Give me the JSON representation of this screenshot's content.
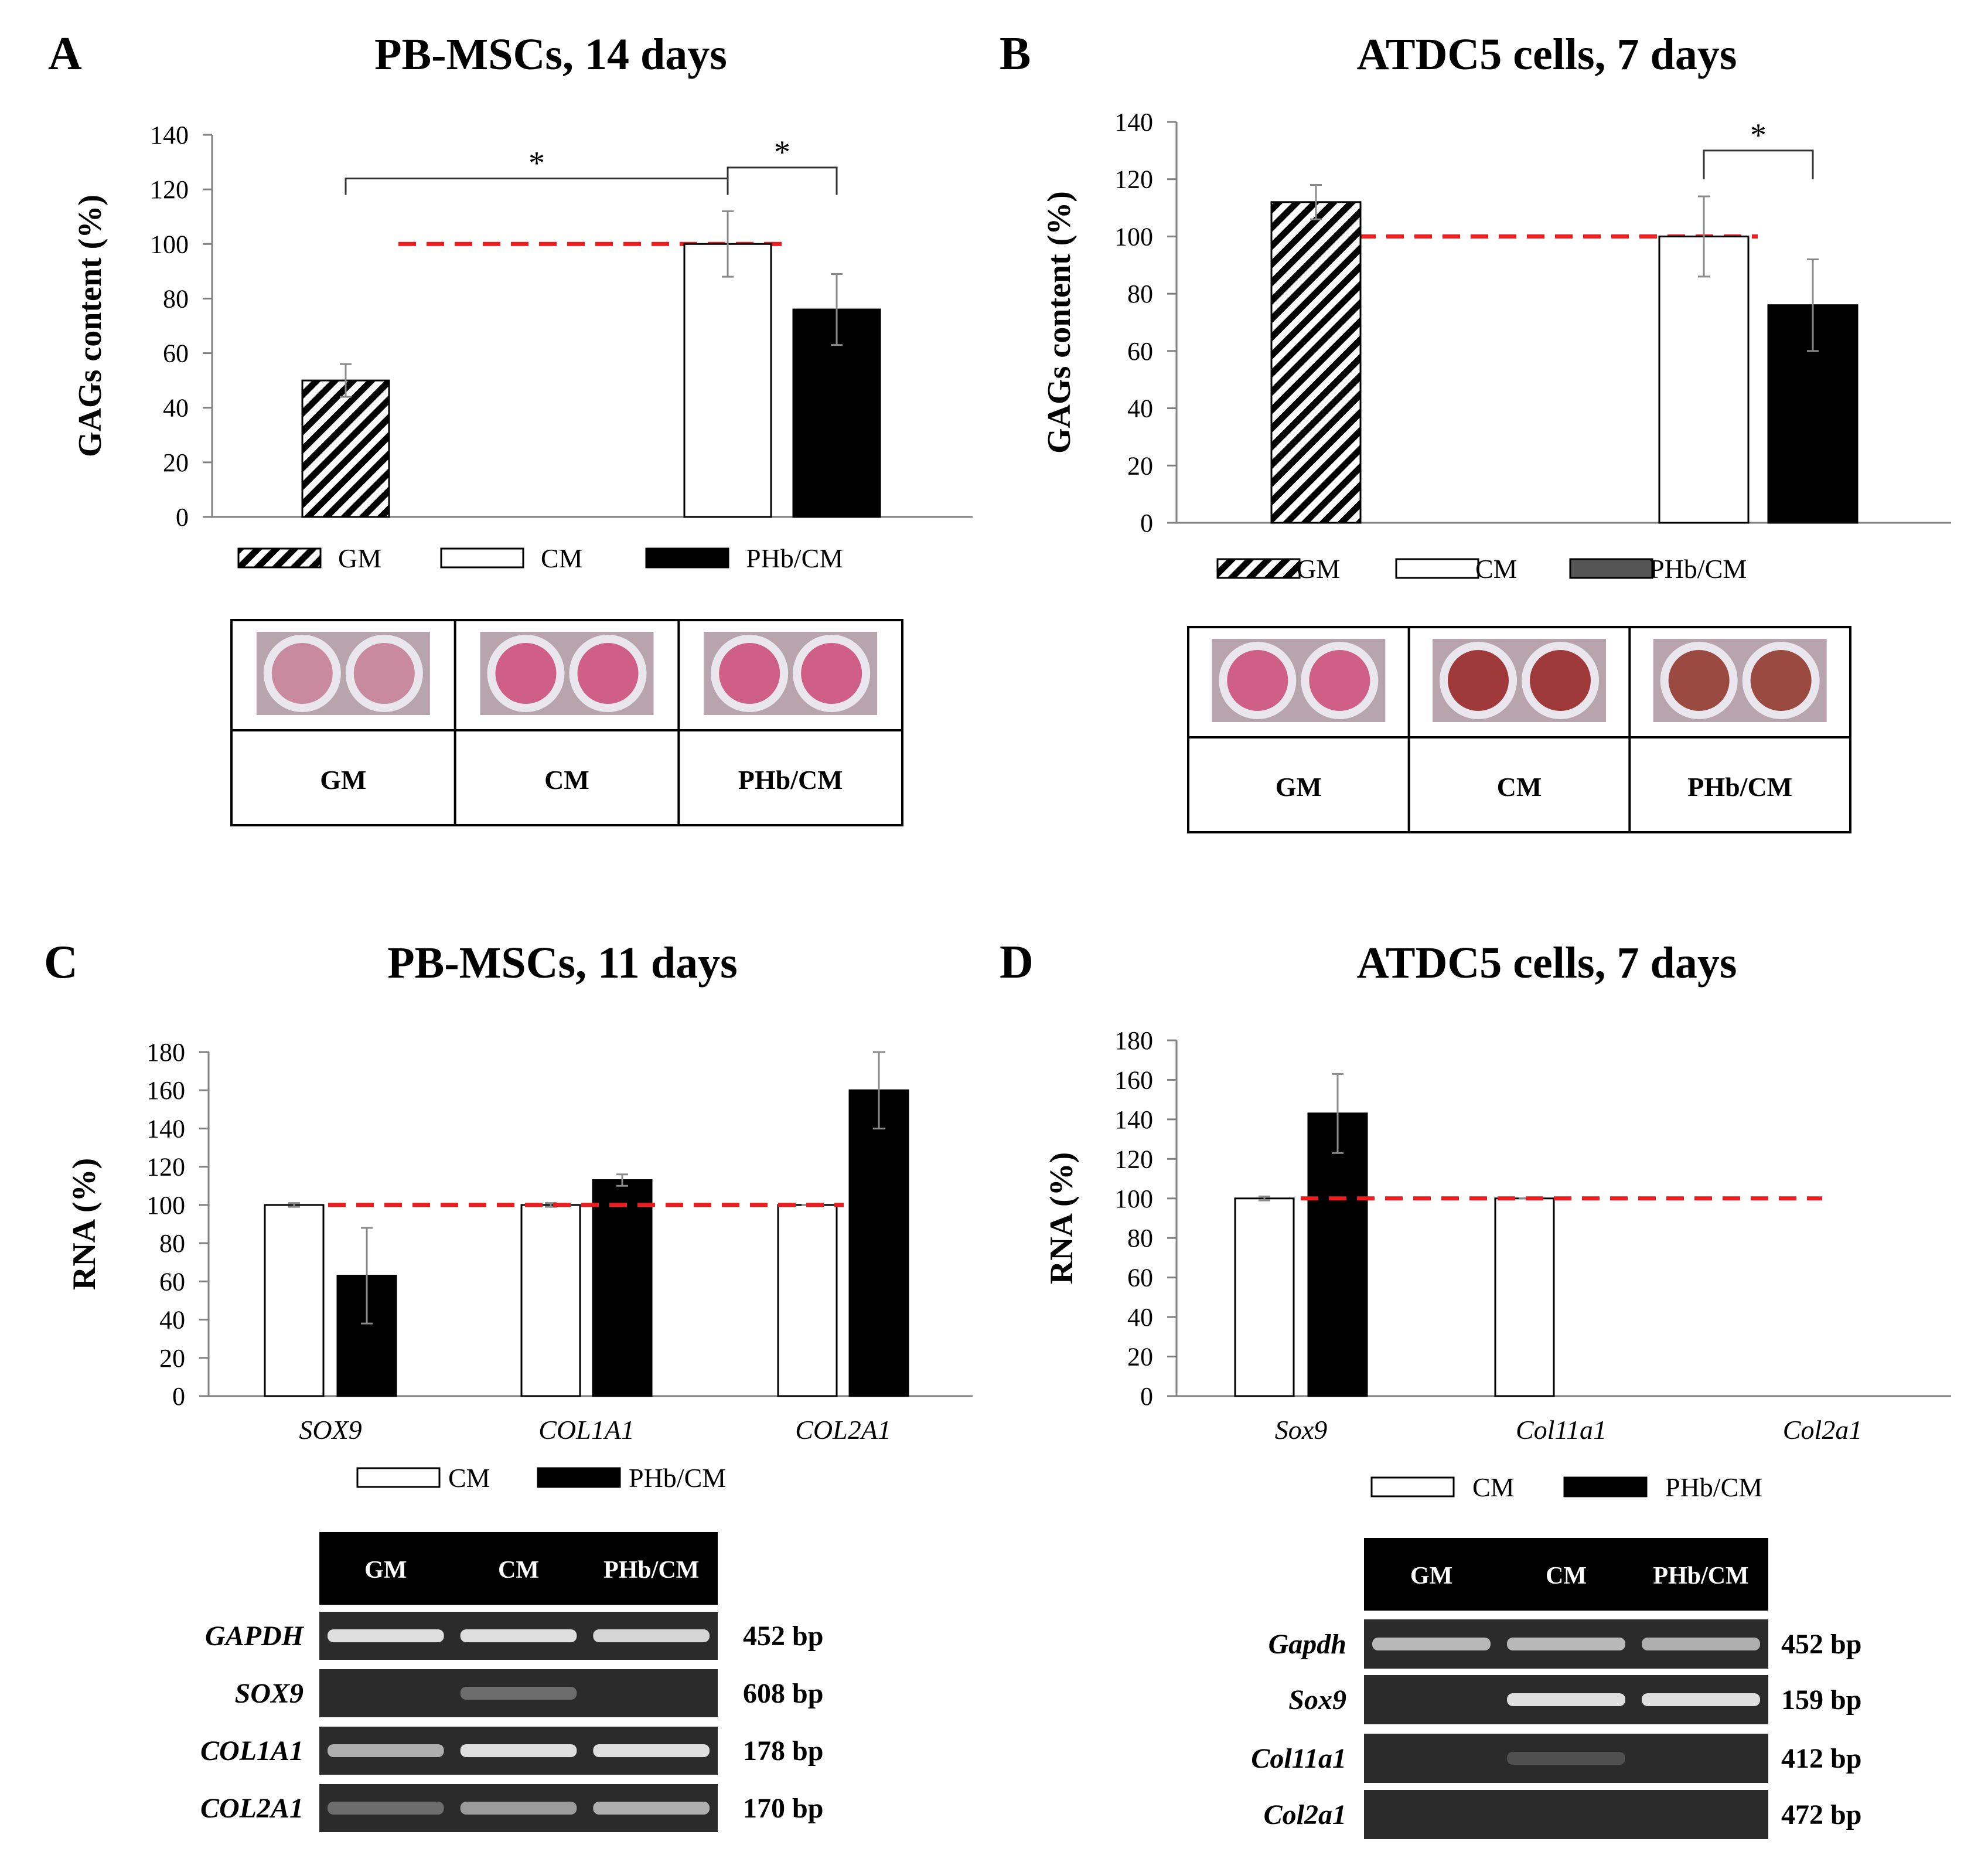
{
  "colors": {
    "reference_line": "#ee1c1c",
    "gm_stripe": "#000000",
    "cm_fill": "#ffffff",
    "phb_fill": "#000000",
    "phb_fill_legend_b": "#555555",
    "gel_lane": "#2b2b2b",
    "gel_band": "#e8e8e8",
    "dish_ring": "#e9e6ee",
    "stain_light": "#c98aa0",
    "stain_pink": "#cf5f86",
    "stain_dark_red": "#a03a3a",
    "stain_brown": "#9a4a40"
  },
  "chart_data": [
    {
      "panel": "A",
      "type": "bar",
      "title": "PB-MSCs, 14 days",
      "ylabel": "GAGs content (%)",
      "xlabel": "",
      "ylim": [
        0,
        140
      ],
      "yticks": [
        "0",
        "20",
        "40",
        "60",
        "80",
        "100",
        "120",
        "140"
      ],
      "reference_line": 100,
      "series": [
        {
          "name": "GM",
          "pattern": "hatched",
          "values": [
            50
          ],
          "errors": [
            6
          ]
        },
        {
          "name": "CM",
          "pattern": "white",
          "values": [
            100
          ],
          "errors": [
            12
          ]
        },
        {
          "name": "PHb/CM",
          "pattern": "black",
          "values": [
            76
          ],
          "errors": [
            13
          ]
        }
      ],
      "significance": [
        {
          "between": [
            "GM",
            "CM"
          ],
          "label": "*"
        },
        {
          "between": [
            "CM",
            "PHb/CM"
          ],
          "label": "*"
        }
      ],
      "legend": [
        "GM",
        "CM",
        "PHb/CM"
      ],
      "stain_table": {
        "columns": [
          "GM",
          "CM",
          "PHb/CM"
        ],
        "stain": [
          "stain_light",
          "stain_pink",
          "stain_pink"
        ]
      }
    },
    {
      "panel": "B",
      "type": "bar",
      "title": "ATDC5 cells, 7 days",
      "ylabel": "GAGs content (%)",
      "xlabel": "",
      "ylim": [
        0,
        140
      ],
      "yticks": [
        "0",
        "20",
        "40",
        "60",
        "80",
        "100",
        "120",
        "140"
      ],
      "reference_line": 100,
      "series": [
        {
          "name": "GM",
          "pattern": "hatched",
          "values": [
            112
          ],
          "errors": [
            6
          ]
        },
        {
          "name": "CM",
          "pattern": "white",
          "values": [
            100
          ],
          "errors": [
            14
          ]
        },
        {
          "name": "PHb/CM",
          "pattern": "black",
          "values": [
            76
          ],
          "errors": [
            16
          ]
        }
      ],
      "significance": [
        {
          "between": [
            "CM",
            "PHb/CM"
          ],
          "label": "*"
        }
      ],
      "legend": [
        "GM",
        "CM",
        "PHb/CM"
      ],
      "stain_table": {
        "columns": [
          "GM",
          "CM",
          "PHb/CM"
        ],
        "stain": [
          "stain_pink",
          "stain_dark_red",
          "stain_brown"
        ]
      }
    },
    {
      "panel": "C",
      "type": "bar",
      "title": "PB-MSCs, 11 days",
      "ylabel": "RNA (%)",
      "xlabel": "",
      "ylim": [
        0,
        180
      ],
      "yticks": [
        "0",
        "20",
        "40",
        "60",
        "80",
        "100",
        "120",
        "140",
        "160",
        "180"
      ],
      "reference_line": 100,
      "categories": [
        "SOX9",
        "COL1A1",
        "COL2A1"
      ],
      "series": [
        {
          "name": "CM",
          "pattern": "white",
          "values": [
            100,
            100,
            100
          ],
          "errors": [
            1,
            1,
            0
          ]
        },
        {
          "name": "PHb/CM",
          "pattern": "black",
          "values": [
            63,
            113,
            160
          ],
          "errors": [
            25,
            3,
            20
          ]
        }
      ],
      "legend": [
        "CM",
        "PHb/CM"
      ],
      "gel": {
        "columns": [
          "GM",
          "CM",
          "PHb/CM"
        ],
        "rows": [
          {
            "gene": "GAPDH",
            "size": "452 bp",
            "bands": [
              0.95,
              0.95,
              0.9
            ]
          },
          {
            "gene": "SOX9",
            "size": "608 bp",
            "bands": [
              0.0,
              0.35,
              0.0
            ]
          },
          {
            "gene": "COL1A1",
            "size": "178 bp",
            "bands": [
              0.7,
              0.95,
              0.95
            ]
          },
          {
            "gene": "COL2A1",
            "size": "170 bp",
            "bands": [
              0.35,
              0.6,
              0.7
            ]
          }
        ]
      }
    },
    {
      "panel": "D",
      "type": "bar",
      "title": "ATDC5 cells, 7 days",
      "ylabel": "RNA (%)",
      "xlabel": "",
      "ylim": [
        0,
        180
      ],
      "yticks": [
        "0",
        "20",
        "40",
        "60",
        "80",
        "100",
        "120",
        "140",
        "160",
        "180"
      ],
      "reference_line": 100,
      "categories": [
        "Sox9",
        "Col11a1",
        "Col2a1"
      ],
      "series": [
        {
          "name": "CM",
          "pattern": "white",
          "values": [
            100,
            100,
            null
          ],
          "errors": [
            1,
            0,
            null
          ]
        },
        {
          "name": "PHb/CM",
          "pattern": "black",
          "values": [
            143,
            null,
            null
          ],
          "errors": [
            20,
            null,
            null
          ]
        }
      ],
      "legend": [
        "CM",
        "PHb/CM"
      ],
      "gel": {
        "columns": [
          "GM",
          "CM",
          "PHb/CM"
        ],
        "rows": [
          {
            "gene": "Gapdh",
            "size": "452 bp",
            "bands": [
              0.75,
              0.75,
              0.7
            ]
          },
          {
            "gene": "Sox9",
            "size": "159 bp",
            "bands": [
              0.0,
              0.95,
              0.95
            ]
          },
          {
            "gene": "Col11a1",
            "size": "412 bp",
            "bands": [
              0.0,
              0.2,
              0.0
            ]
          },
          {
            "gene": "Col2a1",
            "size": "472 bp",
            "bands": [
              0.0,
              0.0,
              0.0
            ]
          }
        ]
      }
    }
  ]
}
